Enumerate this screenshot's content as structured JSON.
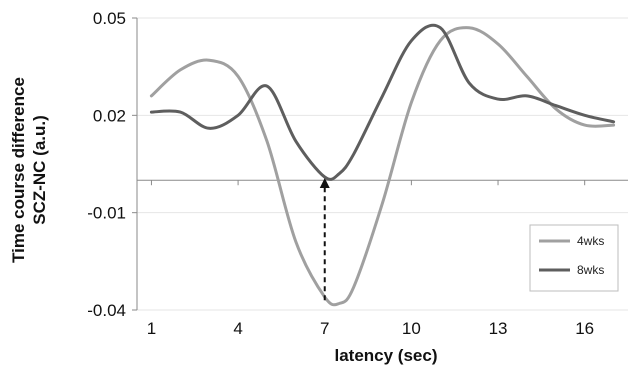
{
  "chart_data": {
    "type": "line",
    "title": "",
    "xlabel": "latency (sec)",
    "ylabel_line1": "Time course difference",
    "ylabel_line2": "SCZ-NC (a.u.)",
    "xlim": [
      0.5,
      17.5
    ],
    "ylim": [
      -0.04,
      0.05
    ],
    "x_ticks": [
      1,
      4,
      7,
      10,
      13,
      16
    ],
    "x_tick_labels": [
      "1",
      "4",
      "7",
      "10",
      "13",
      "16"
    ],
    "y_ticks": [
      -0.04,
      -0.01,
      0.02,
      0.05
    ],
    "y_tick_labels": [
      "-0.04",
      "-0.01",
      "0.02",
      "0.05"
    ],
    "zero_line": 0,
    "grid": true,
    "legend_position": "bottom-right",
    "series": [
      {
        "name": "4wks",
        "color": "#a0a0a0",
        "x": [
          1,
          2,
          3,
          4,
          5,
          6,
          7,
          7.5,
          8,
          9,
          10,
          11,
          12,
          13,
          14,
          15,
          16,
          17
        ],
        "y": [
          0.026,
          0.034,
          0.037,
          0.032,
          0.012,
          -0.019,
          -0.036,
          -0.038,
          -0.033,
          -0.007,
          0.024,
          0.043,
          0.047,
          0.042,
          0.032,
          0.022,
          0.017,
          0.017
        ]
      },
      {
        "name": "8wks",
        "color": "#5e5e5e",
        "x": [
          1,
          2,
          3,
          4,
          5,
          6,
          7,
          7.5,
          8,
          9,
          10,
          11,
          12,
          13,
          14,
          15,
          16,
          17
        ],
        "y": [
          0.021,
          0.021,
          0.016,
          0.02,
          0.029,
          0.012,
          0.001,
          0.002,
          0.008,
          0.026,
          0.043,
          0.047,
          0.03,
          0.025,
          0.026,
          0.023,
          0.02,
          0.018
        ]
      }
    ],
    "annotation": {
      "type": "dashed-arrow",
      "x": 7,
      "y_from": -0.037,
      "y_to": 0.001
    }
  }
}
